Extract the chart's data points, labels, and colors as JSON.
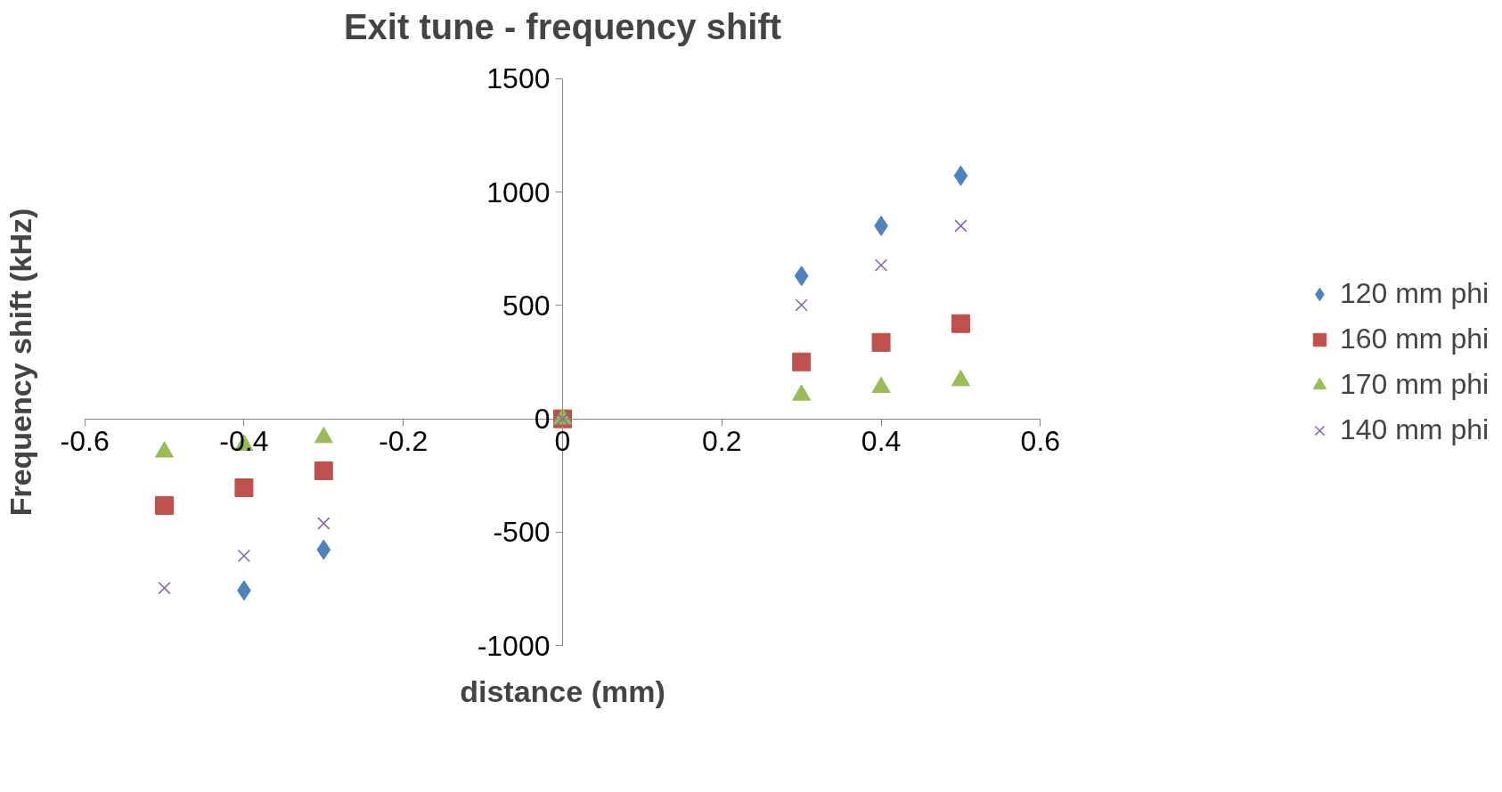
{
  "chart_data": {
    "type": "scatter",
    "title": "Exit tune - frequency shift",
    "xlabel": "distance (mm)",
    "ylabel": "Frequency shift (kHz)",
    "xlim": [
      -0.6,
      0.6
    ],
    "xticks": [
      -0.6,
      -0.4,
      -0.2,
      0,
      0.2,
      0.4,
      0.6
    ],
    "ylim": [
      -1000,
      1500
    ],
    "yticks": [
      -1000,
      -500,
      0,
      500,
      1000,
      1500
    ],
    "grid": false,
    "legend": "right",
    "series": [
      {
        "name": "120 mm phi",
        "color": "#4f81bd",
        "marker": "diamond",
        "x": [
          -0.4,
          -0.3,
          0,
          0.3,
          0.4,
          0.5
        ],
        "values": [
          -757,
          -577,
          null,
          630,
          851,
          1072
        ]
      },
      {
        "name": "160 mm phi",
        "color": "#c0504d",
        "marker": "square",
        "x": [
          -0.5,
          -0.4,
          -0.3,
          0,
          0.3,
          0.4,
          0.5
        ],
        "values": [
          -382,
          -304,
          -229,
          0,
          251,
          337,
          420
        ]
      },
      {
        "name": "170 mm phi",
        "color": "#9bbb59",
        "marker": "triangle",
        "x": [
          -0.5,
          -0.4,
          -0.3,
          0,
          0.3,
          0.4,
          0.5
        ],
        "values": [
          -146,
          -116,
          -82,
          0,
          105,
          139,
          169
        ]
      },
      {
        "name": "140 mm phi",
        "color": "#8064a2",
        "marker": "cross",
        "x": [
          -0.5,
          -0.4,
          -0.3,
          0,
          0.3,
          0.4,
          0.5
        ],
        "values": [
          -746,
          -604,
          -461,
          0,
          502,
          678,
          851
        ]
      }
    ]
  }
}
